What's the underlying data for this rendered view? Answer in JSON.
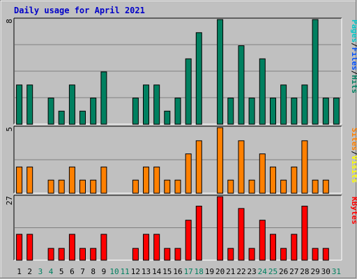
{
  "chart_data": {
    "type": "bar",
    "title": "Daily usage for April 2021",
    "days": [
      "1",
      "2",
      "3",
      "4",
      "5",
      "6",
      "7",
      "8",
      "9",
      "10",
      "11",
      "12",
      "13",
      "14",
      "15",
      "16",
      "17",
      "18",
      "19",
      "20",
      "21",
      "22",
      "23",
      "24",
      "25",
      "26",
      "27",
      "28",
      "29",
      "30",
      "31"
    ],
    "weekend_days": [
      "3",
      "4",
      "10",
      "11",
      "17",
      "18",
      "24",
      "25",
      "31"
    ],
    "panels": [
      {
        "id": "hits-panel",
        "ymax": 8,
        "ymax_label": "8",
        "legend": [
          "Pages",
          "/",
          "Files",
          "/",
          "Hits"
        ],
        "legend_colors": [
          "#00c8c8",
          "#000000",
          "#0050ff",
          "#000000",
          "#008060"
        ],
        "bar_color": "#008060",
        "values": [
          3,
          3,
          null,
          2,
          1,
          3,
          1,
          2,
          4,
          null,
          null,
          2,
          3,
          3,
          1,
          2,
          5,
          7,
          null,
          8,
          2,
          6,
          2,
          5,
          2,
          3,
          2,
          3,
          8,
          2,
          2
        ]
      },
      {
        "id": "visits-panel",
        "ymax": 5,
        "ymax_label": "5",
        "legend": [
          "Sites",
          "/",
          "Visits"
        ],
        "legend_colors": [
          "#ff8000",
          "#000000",
          "#ffff00"
        ],
        "bar_color": "#ff8000",
        "values": [
          2,
          2,
          null,
          1,
          1,
          2,
          1,
          1,
          2,
          null,
          null,
          1,
          2,
          2,
          1,
          1,
          3,
          4,
          null,
          5,
          1,
          4,
          1,
          3,
          2,
          1,
          2,
          4,
          1,
          1,
          null
        ]
      },
      {
        "id": "kbytes-panel",
        "ymax": 27,
        "ymax_label": "27",
        "legend": [
          "KBytes"
        ],
        "legend_colors": [
          "#ff0000"
        ],
        "bar_color": "#ff0000",
        "values": [
          11,
          11,
          null,
          5,
          5,
          11,
          5,
          5,
          11,
          null,
          null,
          5,
          11,
          11,
          5,
          5,
          17,
          23,
          null,
          27,
          5,
          22,
          5,
          17,
          11,
          5,
          11,
          23,
          5,
          5,
          null
        ]
      }
    ],
    "colors": {
      "background": "#c0c0c0",
      "plot_background": "#c0c0c0",
      "title": "#0000c8",
      "weekday_label": "#000000",
      "weekend_label": "#008060",
      "grid": "#808080"
    }
  }
}
